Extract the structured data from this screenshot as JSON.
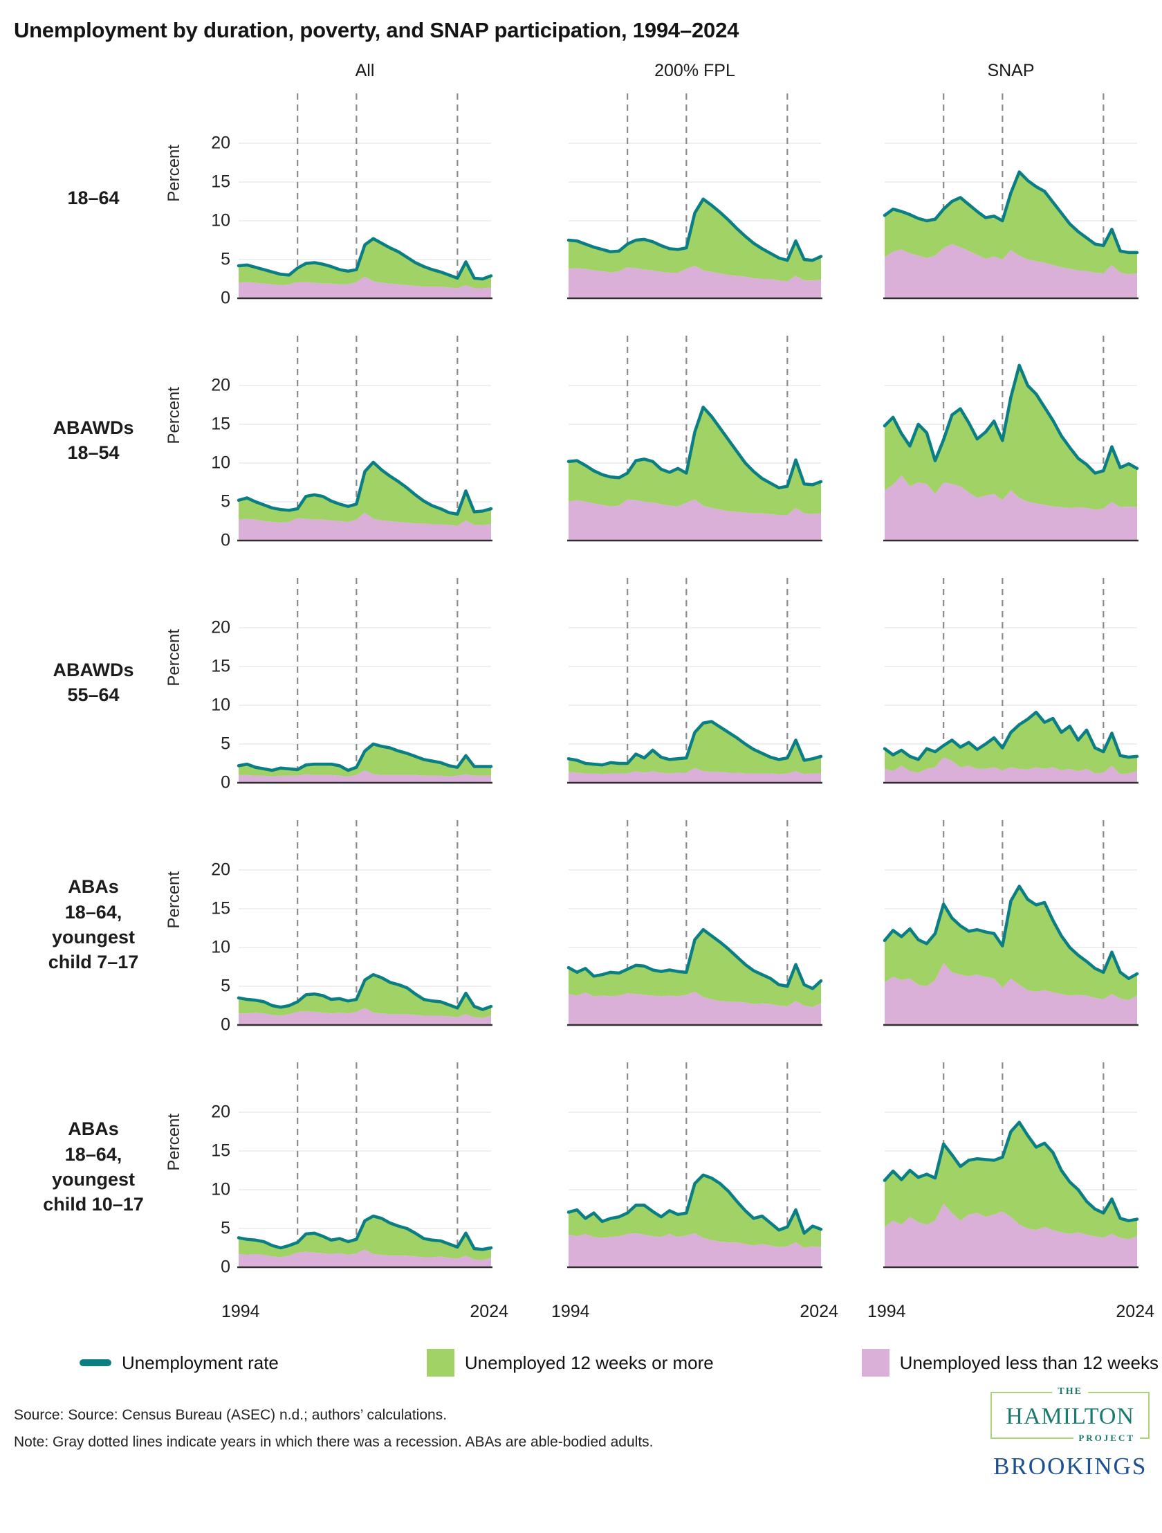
{
  "title": "Unemployment by duration, poverty, and SNAP participation, 1994–2024",
  "columns": [
    "All",
    "200% FPL",
    "SNAP"
  ],
  "rows": [
    {
      "label": "18–64"
    },
    {
      "label": "ABAWDs\n18–54"
    },
    {
      "label": "ABAWDs\n55–64"
    },
    {
      "label": "ABAs\n18–64,\nyoungest\nchild 7–17"
    },
    {
      "label": "ABAs\n18–64,\nyoungest\nchild 10–17"
    }
  ],
  "axes": {
    "ylabel": "Percent",
    "yticks": [
      "20",
      "15",
      "10",
      "5",
      "0"
    ],
    "xfirst": "1994",
    "xlast": "2024"
  },
  "legend": [
    {
      "label": "Unemployment rate",
      "type": "line",
      "color": "#0b7e84"
    },
    {
      "label": "Unemployed 12 weeks or more",
      "type": "square",
      "color": "#a1d266"
    },
    {
      "label": "Unemployed less than 12 weeks",
      "type": "square",
      "color": "#dbb0d8"
    }
  ],
  "source": "Source: Source: Census Bureau (ASEC) n.d.; authors’ calculations.",
  "note": "Note: Gray dotted lines indicate years in which there was a recession. ABAs are able-bodied adults.",
  "logos": {
    "hamilton_the": "THE",
    "hamilton_name": "HAMILTON",
    "hamilton_project": "PROJECT",
    "brookings": "BROOKINGS"
  },
  "chart_data": {
    "type": "area",
    "description": "Small multiples grid (5 population rows x 3 group columns). Stacked areas: pink = unemployed less than 12 weeks, green = unemployed 12 weeks or more (rate minus under-12-weeks). Teal line = total unemployment rate. Values in percent.",
    "x_years_start": 1994,
    "x_years_end": 2024,
    "ylim": [
      0,
      25
    ],
    "grid_y": [
      5,
      10,
      15,
      20
    ],
    "recession_years": [
      2001,
      2008,
      2020
    ],
    "legend_position": "bottom",
    "colors": {
      "rate_line": "#0b7e84",
      "twelve_plus_weeks": "#a1d266",
      "under_12_weeks": "#dbb0d8",
      "recession_line": "#8b8b8b"
    },
    "panels": [
      {
        "group": "18–64",
        "column": "All",
        "rate": [
          4.2,
          4.3,
          4.0,
          3.7,
          3.4,
          3.1,
          3.0,
          3.9,
          4.5,
          4.6,
          4.4,
          4.1,
          3.7,
          3.5,
          3.7,
          6.9,
          7.7,
          7.1,
          6.5,
          6.0,
          5.3,
          4.6,
          4.1,
          3.7,
          3.4,
          3.0,
          2.6,
          4.7,
          2.6,
          2.5,
          2.9
        ],
        "under_12_weeks": [
          2.0,
          2.1,
          2.0,
          1.9,
          1.8,
          1.7,
          1.8,
          2.1,
          2.1,
          2.0,
          1.9,
          1.9,
          1.8,
          1.8,
          2.1,
          2.8,
          2.2,
          2.0,
          1.9,
          1.8,
          1.7,
          1.6,
          1.5,
          1.5,
          1.5,
          1.4,
          1.3,
          1.7,
          1.3,
          1.3,
          1.4
        ]
      },
      {
        "group": "18–64",
        "column": "200% FPL",
        "rate": [
          7.5,
          7.4,
          7.0,
          6.6,
          6.3,
          6.0,
          6.1,
          7.0,
          7.5,
          7.6,
          7.3,
          6.8,
          6.4,
          6.3,
          6.5,
          11.0,
          12.8,
          12.0,
          11.1,
          10.1,
          9.0,
          8.0,
          7.1,
          6.4,
          5.8,
          5.2,
          4.9,
          7.4,
          5.0,
          4.9,
          5.4
        ],
        "under_12_weeks": [
          3.8,
          3.9,
          3.8,
          3.6,
          3.5,
          3.3,
          3.5,
          4.0,
          3.9,
          3.7,
          3.6,
          3.4,
          3.3,
          3.3,
          3.8,
          4.2,
          3.6,
          3.4,
          3.2,
          3.0,
          2.9,
          2.8,
          2.6,
          2.5,
          2.5,
          2.3,
          2.2,
          2.9,
          2.3,
          2.3,
          2.4
        ]
      },
      {
        "group": "18–64",
        "column": "SNAP",
        "rate": [
          10.7,
          11.5,
          11.2,
          10.8,
          10.3,
          10.0,
          10.2,
          11.5,
          12.5,
          13.0,
          12.1,
          11.2,
          10.4,
          10.6,
          10.0,
          13.6,
          16.3,
          15.2,
          14.4,
          13.8,
          12.4,
          11.0,
          9.6,
          8.6,
          7.8,
          7.0,
          6.8,
          8.9,
          6.1,
          5.9,
          5.9
        ],
        "under_12_weeks": [
          5.3,
          6.0,
          6.3,
          5.8,
          5.5,
          5.2,
          5.5,
          6.5,
          7.0,
          6.6,
          6.1,
          5.6,
          5.1,
          5.4,
          5.0,
          6.2,
          5.5,
          5.0,
          4.8,
          4.6,
          4.3,
          4.0,
          3.8,
          3.6,
          3.5,
          3.3,
          3.2,
          4.3,
          3.3,
          3.1,
          3.2
        ]
      },
      {
        "group": "ABAWDs 18–54",
        "column": "All",
        "rate": [
          5.2,
          5.5,
          5.0,
          4.6,
          4.2,
          4.0,
          3.9,
          4.1,
          5.7,
          5.9,
          5.7,
          5.1,
          4.7,
          4.4,
          4.7,
          8.9,
          10.1,
          9.1,
          8.3,
          7.6,
          6.8,
          5.9,
          5.1,
          4.5,
          4.1,
          3.6,
          3.4,
          6.4,
          3.7,
          3.8,
          4.1
        ],
        "under_12_weeks": [
          2.7,
          2.8,
          2.7,
          2.5,
          2.4,
          2.3,
          2.4,
          2.9,
          2.8,
          2.7,
          2.7,
          2.6,
          2.5,
          2.4,
          2.7,
          3.6,
          2.8,
          2.6,
          2.5,
          2.4,
          2.3,
          2.2,
          2.2,
          2.1,
          2.1,
          2.0,
          1.9,
          2.6,
          2.0,
          2.0,
          2.1
        ]
      },
      {
        "group": "ABAWDs 18–54",
        "column": "200% FPL",
        "rate": [
          10.2,
          10.3,
          9.7,
          9.0,
          8.5,
          8.2,
          8.1,
          8.7,
          10.3,
          10.5,
          10.2,
          9.2,
          8.8,
          9.3,
          8.7,
          14.0,
          17.2,
          16.0,
          14.5,
          13.0,
          11.5,
          10.0,
          8.9,
          8.0,
          7.4,
          6.8,
          7.0,
          10.4,
          7.3,
          7.2,
          7.6
        ],
        "under_12_weeks": [
          5.0,
          5.2,
          5.0,
          4.8,
          4.6,
          4.4,
          4.5,
          5.3,
          5.2,
          5.0,
          4.9,
          4.7,
          4.5,
          4.4,
          4.9,
          5.3,
          4.5,
          4.2,
          4.0,
          3.8,
          3.7,
          3.6,
          3.5,
          3.5,
          3.4,
          3.3,
          3.3,
          4.2,
          3.5,
          3.4,
          3.5
        ]
      },
      {
        "group": "ABAWDs 18–54",
        "column": "SNAP",
        "rate": [
          14.8,
          15.9,
          13.8,
          12.2,
          15.0,
          13.9,
          10.3,
          13.0,
          16.2,
          17.0,
          15.2,
          13.1,
          14.0,
          15.4,
          12.9,
          18.5,
          22.6,
          20.0,
          18.9,
          17.2,
          15.5,
          13.5,
          12.0,
          10.6,
          9.8,
          8.7,
          9.0,
          12.1,
          9.4,
          9.9,
          9.3
        ],
        "under_12_weeks": [
          6.5,
          7.2,
          8.4,
          7.0,
          7.5,
          7.3,
          6.0,
          7.5,
          7.3,
          7.0,
          6.2,
          5.5,
          5.8,
          6.0,
          5.2,
          6.5,
          5.5,
          5.0,
          4.8,
          4.6,
          4.4,
          4.3,
          4.2,
          4.3,
          4.2,
          4.0,
          4.1,
          5.0,
          4.3,
          4.4,
          4.3
        ]
      },
      {
        "group": "ABAWDs 55–64",
        "column": "All",
        "rate": [
          2.2,
          2.4,
          2.0,
          1.8,
          1.6,
          1.9,
          1.8,
          1.7,
          2.3,
          2.4,
          2.4,
          2.4,
          2.2,
          1.6,
          2.0,
          4.1,
          5.0,
          4.7,
          4.5,
          4.1,
          3.8,
          3.4,
          3.0,
          2.8,
          2.6,
          2.2,
          2.0,
          3.5,
          2.1,
          2.1,
          2.1
        ],
        "under_12_weeks": [
          1.0,
          1.0,
          0.9,
          0.9,
          0.8,
          0.9,
          0.9,
          0.9,
          1.1,
          1.0,
          1.0,
          1.0,
          0.9,
          0.8,
          1.0,
          1.6,
          1.1,
          1.0,
          1.0,
          1.0,
          1.0,
          1.0,
          0.9,
          0.9,
          0.9,
          0.8,
          0.9,
          1.1,
          0.9,
          0.9,
          0.9
        ]
      },
      {
        "group": "ABAWDs 55–64",
        "column": "200% FPL",
        "rate": [
          3.1,
          2.9,
          2.5,
          2.4,
          2.3,
          2.6,
          2.5,
          2.5,
          3.7,
          3.2,
          4.2,
          3.3,
          3.0,
          3.1,
          3.2,
          6.5,
          7.7,
          7.9,
          7.2,
          6.5,
          5.8,
          5.0,
          4.3,
          3.8,
          3.3,
          3.0,
          3.2,
          5.5,
          2.9,
          3.1,
          3.4
        ],
        "under_12_weeks": [
          1.4,
          1.3,
          1.2,
          1.2,
          1.1,
          1.2,
          1.2,
          1.2,
          1.5,
          1.3,
          1.5,
          1.3,
          1.2,
          1.3,
          1.3,
          1.9,
          1.5,
          1.4,
          1.4,
          1.3,
          1.3,
          1.2,
          1.2,
          1.2,
          1.2,
          1.1,
          1.2,
          1.5,
          1.1,
          1.2,
          1.2
        ]
      },
      {
        "group": "ABAWDs 55–64",
        "column": "SNAP",
        "rate": [
          4.4,
          3.6,
          4.2,
          3.4,
          3.0,
          4.4,
          4.0,
          4.8,
          5.5,
          4.6,
          5.2,
          4.3,
          5.0,
          5.8,
          4.5,
          6.5,
          7.5,
          8.2,
          9.1,
          7.8,
          8.3,
          6.5,
          7.3,
          5.5,
          6.8,
          4.5,
          4.0,
          6.4,
          3.5,
          3.3,
          3.4
        ],
        "under_12_weeks": [
          1.8,
          1.5,
          2.2,
          1.5,
          1.3,
          1.8,
          2.0,
          3.3,
          2.8,
          2.0,
          2.2,
          1.8,
          1.8,
          2.0,
          1.6,
          2.0,
          1.8,
          1.7,
          2.0,
          1.8,
          2.0,
          1.6,
          1.8,
          1.5,
          1.8,
          1.2,
          1.3,
          2.2,
          1.1,
          1.2,
          1.5
        ]
      },
      {
        "group": "ABAs 18–64, youngest child 7–17",
        "column": "All",
        "rate": [
          3.5,
          3.3,
          3.2,
          3.0,
          2.5,
          2.3,
          2.5,
          3.0,
          3.9,
          4.0,
          3.8,
          3.3,
          3.4,
          3.1,
          3.3,
          5.8,
          6.5,
          6.1,
          5.5,
          5.2,
          4.8,
          4.0,
          3.3,
          3.1,
          3.0,
          2.6,
          2.2,
          4.1,
          2.4,
          2.0,
          2.4
        ],
        "under_12_weeks": [
          1.5,
          1.5,
          1.6,
          1.5,
          1.3,
          1.2,
          1.4,
          1.7,
          1.8,
          1.7,
          1.6,
          1.5,
          1.6,
          1.5,
          1.7,
          2.2,
          1.6,
          1.5,
          1.4,
          1.4,
          1.4,
          1.3,
          1.2,
          1.2,
          1.2,
          1.1,
          1.0,
          1.4,
          1.0,
          0.9,
          1.2
        ]
      },
      {
        "group": "ABAs 18–64, youngest child 7–17",
        "column": "200% FPL",
        "rate": [
          7.4,
          6.8,
          7.3,
          6.3,
          6.5,
          6.8,
          6.7,
          7.2,
          7.7,
          7.6,
          7.1,
          6.9,
          7.1,
          6.9,
          6.8,
          11.0,
          12.3,
          11.5,
          10.7,
          9.8,
          8.8,
          7.8,
          7.0,
          6.5,
          6.0,
          5.2,
          5.0,
          7.8,
          5.2,
          4.7,
          5.7
        ],
        "under_12_weeks": [
          4.0,
          3.8,
          4.2,
          3.7,
          3.8,
          3.7,
          3.8,
          4.1,
          4.0,
          3.9,
          3.8,
          3.7,
          3.8,
          3.7,
          3.9,
          4.3,
          3.6,
          3.3,
          3.1,
          3.0,
          3.0,
          2.9,
          2.7,
          2.8,
          2.7,
          2.5,
          2.4,
          3.1,
          2.5,
          2.3,
          2.8
        ]
      },
      {
        "group": "ABAs 18–64, youngest child 7–17",
        "column": "SNAP",
        "rate": [
          10.9,
          12.2,
          11.4,
          12.4,
          11.0,
          10.5,
          11.8,
          15.6,
          13.8,
          12.8,
          12.1,
          12.3,
          12.0,
          11.8,
          10.2,
          16.0,
          17.9,
          16.2,
          15.5,
          15.8,
          13.5,
          11.5,
          10.0,
          9.0,
          8.2,
          7.3,
          6.8,
          9.4,
          6.8,
          6.0,
          6.6
        ],
        "under_12_weeks": [
          5.5,
          6.2,
          5.8,
          6.0,
          5.2,
          5.0,
          5.8,
          8.0,
          6.8,
          6.5,
          6.3,
          6.5,
          6.2,
          6.0,
          4.8,
          6.0,
          5.2,
          4.5,
          4.3,
          4.5,
          4.2,
          4.0,
          3.8,
          3.9,
          3.8,
          3.5,
          3.3,
          4.0,
          3.4,
          3.2,
          3.8
        ]
      },
      {
        "group": "ABAs 18–64, youngest child 10–17",
        "column": "All",
        "rate": [
          3.8,
          3.6,
          3.5,
          3.3,
          2.8,
          2.5,
          2.8,
          3.2,
          4.3,
          4.4,
          4.0,
          3.5,
          3.7,
          3.3,
          3.6,
          6.0,
          6.6,
          6.3,
          5.7,
          5.3,
          5.0,
          4.4,
          3.7,
          3.5,
          3.4,
          3.0,
          2.6,
          4.4,
          2.4,
          2.3,
          2.5
        ],
        "under_12_weeks": [
          1.7,
          1.6,
          1.7,
          1.6,
          1.4,
          1.3,
          1.5,
          1.9,
          2.0,
          1.9,
          1.8,
          1.7,
          1.8,
          1.6,
          1.8,
          2.3,
          1.7,
          1.6,
          1.5,
          1.5,
          1.5,
          1.4,
          1.3,
          1.3,
          1.4,
          1.2,
          1.1,
          1.5,
          1.0,
          0.9,
          1.2
        ]
      },
      {
        "group": "ABAs 18–64, youngest child 10–17",
        "column": "200% FPL",
        "rate": [
          7.1,
          7.4,
          6.3,
          7.0,
          5.9,
          6.3,
          6.5,
          7.0,
          8.0,
          8.0,
          7.2,
          6.5,
          7.3,
          6.8,
          7.0,
          10.8,
          11.9,
          11.5,
          10.8,
          9.8,
          8.5,
          7.3,
          6.3,
          6.6,
          5.7,
          4.8,
          5.2,
          7.4,
          4.4,
          5.3,
          4.9
        ],
        "under_12_weeks": [
          4.2,
          4.0,
          4.3,
          3.9,
          3.8,
          3.9,
          4.0,
          4.3,
          4.4,
          4.2,
          4.0,
          3.9,
          4.3,
          3.9,
          4.1,
          4.4,
          3.8,
          3.5,
          3.3,
          3.2,
          3.2,
          3.0,
          2.8,
          3.0,
          2.8,
          2.6,
          2.7,
          3.2,
          2.5,
          2.7,
          2.6
        ]
      },
      {
        "group": "ABAs 18–64, youngest child 10–17",
        "column": "SNAP",
        "rate": [
          11.2,
          12.4,
          11.3,
          12.5,
          11.6,
          12.0,
          11.5,
          15.9,
          14.5,
          13.0,
          13.8,
          14.0,
          13.9,
          13.8,
          14.2,
          17.5,
          18.7,
          17.0,
          15.5,
          16.0,
          14.8,
          12.5,
          11.0,
          10.0,
          8.5,
          7.5,
          7.0,
          8.8,
          6.3,
          6.0,
          6.2
        ],
        "under_12_weeks": [
          5.2,
          6.0,
          5.5,
          6.5,
          5.8,
          5.5,
          6.0,
          8.2,
          7.0,
          6.0,
          6.8,
          7.0,
          6.5,
          6.8,
          7.2,
          6.5,
          5.5,
          5.0,
          4.8,
          5.2,
          4.8,
          4.5,
          4.3,
          4.5,
          4.2,
          4.0,
          3.8,
          4.3,
          3.8,
          3.6,
          4.0
        ]
      }
    ]
  }
}
